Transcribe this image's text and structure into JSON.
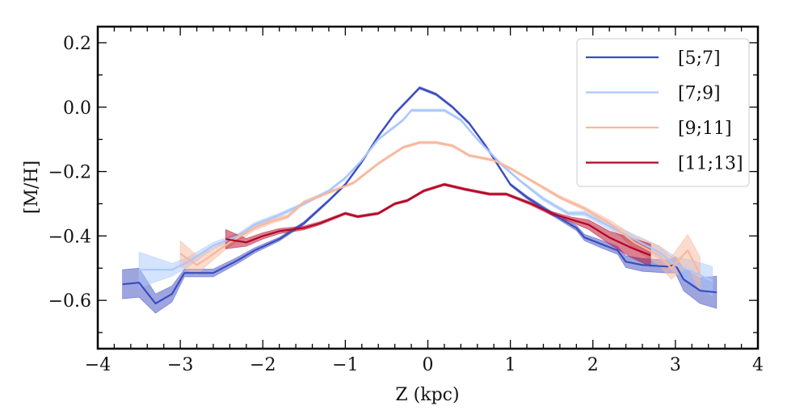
{
  "chart_data": {
    "type": "line",
    "title": "",
    "xlabel": "Z (kpc)",
    "ylabel": "[M/H]",
    "xlim": [
      -4,
      4
    ],
    "ylim": [
      -0.75,
      0.25
    ],
    "xticks": [
      -4,
      -3,
      -2,
      -1,
      0,
      1,
      2,
      3,
      4
    ],
    "xtick_labels": [
      "−4",
      "−3",
      "−2",
      "−1",
      "0",
      "1",
      "2",
      "3",
      "4"
    ],
    "yticks": [
      0.2,
      0.0,
      -0.2,
      -0.4,
      -0.6
    ],
    "ytick_labels": [
      "0.2",
      "0.0",
      "−0.2",
      "−0.4",
      "−0.6"
    ],
    "grid": false,
    "legend_position": "top-right",
    "series": [
      {
        "name": "[5;7]",
        "color": "#3b4cc0",
        "x": [
          -3.7,
          -3.5,
          -3.3,
          -3.1,
          -2.95,
          -2.6,
          -2.3,
          -2.1,
          -1.8,
          -1.5,
          -1.2,
          -1.0,
          -0.8,
          -0.6,
          -0.4,
          -0.1,
          0.1,
          0.3,
          0.5,
          0.7,
          1.0,
          1.2,
          1.5,
          1.8,
          1.9,
          2.1,
          2.3,
          2.4,
          2.6,
          2.9,
          3.0,
          3.1,
          3.3,
          3.5
        ],
        "y": [
          -0.55,
          -0.545,
          -0.61,
          -0.58,
          -0.515,
          -0.515,
          -0.475,
          -0.445,
          -0.41,
          -0.36,
          -0.29,
          -0.24,
          -0.17,
          -0.09,
          -0.02,
          0.06,
          0.04,
          0.0,
          -0.05,
          -0.12,
          -0.24,
          -0.28,
          -0.33,
          -0.375,
          -0.405,
          -0.425,
          -0.445,
          -0.48,
          -0.49,
          -0.495,
          -0.49,
          -0.535,
          -0.57,
          -0.575
        ],
        "err": [
          0.045,
          0.045,
          0.03,
          0.025,
          0.012,
          0.012,
          0.01,
          0.008,
          0.006,
          0.005,
          0.004,
          0.004,
          0.004,
          0.004,
          0.004,
          0.004,
          0.004,
          0.004,
          0.004,
          0.004,
          0.004,
          0.005,
          0.006,
          0.008,
          0.01,
          0.012,
          0.012,
          0.018,
          0.02,
          0.02,
          0.025,
          0.035,
          0.04,
          0.05
        ]
      },
      {
        "name": "[7;9]",
        "color": "#aac7fd",
        "x": [
          -3.5,
          -3.1,
          -2.9,
          -2.6,
          -2.3,
          -2.1,
          -1.8,
          -1.5,
          -1.2,
          -1.0,
          -0.8,
          -0.6,
          -0.3,
          -0.2,
          0.2,
          0.4,
          0.6,
          0.9,
          1.1,
          1.4,
          1.7,
          1.9,
          2.2,
          2.5,
          2.8,
          3.0,
          3.2,
          3.45
        ],
        "y": [
          -0.505,
          -0.505,
          -0.48,
          -0.43,
          -0.4,
          -0.365,
          -0.335,
          -0.3,
          -0.26,
          -0.22,
          -0.165,
          -0.1,
          -0.04,
          -0.01,
          -0.01,
          -0.04,
          -0.1,
          -0.18,
          -0.225,
          -0.285,
          -0.33,
          -0.33,
          -0.37,
          -0.41,
          -0.45,
          -0.49,
          -0.51,
          -0.54
        ],
        "err": [
          0.055,
          0.02,
          0.015,
          0.01,
          0.008,
          0.007,
          0.006,
          0.005,
          0.004,
          0.004,
          0.004,
          0.004,
          0.004,
          0.004,
          0.004,
          0.004,
          0.004,
          0.004,
          0.004,
          0.005,
          0.006,
          0.007,
          0.01,
          0.015,
          0.02,
          0.025,
          0.035,
          0.045
        ]
      },
      {
        "name": "[9;11]",
        "color": "#f7b89c",
        "x": [
          -3.0,
          -2.8,
          -2.65,
          -2.4,
          -2.1,
          -1.9,
          -1.7,
          -1.5,
          -1.2,
          -0.9,
          -0.6,
          -0.3,
          -0.1,
          0.1,
          0.3,
          0.5,
          0.8,
          1.0,
          1.3,
          1.6,
          1.9,
          2.2,
          2.5,
          2.8,
          2.95,
          3.15,
          3.3
        ],
        "y": [
          -0.455,
          -0.49,
          -0.465,
          -0.42,
          -0.375,
          -0.355,
          -0.34,
          -0.295,
          -0.265,
          -0.235,
          -0.175,
          -0.125,
          -0.11,
          -0.11,
          -0.12,
          -0.15,
          -0.165,
          -0.19,
          -0.235,
          -0.28,
          -0.315,
          -0.36,
          -0.42,
          -0.46,
          -0.5,
          -0.445,
          -0.52
        ],
        "err": [
          0.04,
          0.03,
          0.02,
          0.012,
          0.008,
          0.007,
          0.006,
          0.005,
          0.004,
          0.004,
          0.004,
          0.004,
          0.004,
          0.004,
          0.004,
          0.004,
          0.004,
          0.004,
          0.004,
          0.005,
          0.006,
          0.01,
          0.02,
          0.03,
          0.035,
          0.05,
          0.055
        ]
      },
      {
        "name": "[11;13]",
        "color": "#b40426",
        "x": [
          -2.45,
          -2.2,
          -2.0,
          -1.8,
          -1.5,
          -1.3,
          -1.0,
          -0.85,
          -0.6,
          -0.4,
          -0.25,
          -0.05,
          0.2,
          0.45,
          0.75,
          0.95,
          1.25,
          1.5,
          1.75,
          1.95,
          2.2,
          2.45,
          2.7
        ],
        "y": [
          -0.41,
          -0.42,
          -0.4,
          -0.385,
          -0.375,
          -0.36,
          -0.33,
          -0.34,
          -0.33,
          -0.3,
          -0.29,
          -0.26,
          -0.24,
          -0.255,
          -0.27,
          -0.27,
          -0.3,
          -0.33,
          -0.35,
          -0.365,
          -0.405,
          -0.435,
          -0.46
        ],
        "err": [
          0.03,
          0.012,
          0.01,
          0.008,
          0.006,
          0.005,
          0.004,
          0.004,
          0.004,
          0.004,
          0.004,
          0.004,
          0.004,
          0.004,
          0.004,
          0.004,
          0.005,
          0.006,
          0.008,
          0.015,
          0.02,
          0.03,
          0.035
        ]
      }
    ]
  }
}
